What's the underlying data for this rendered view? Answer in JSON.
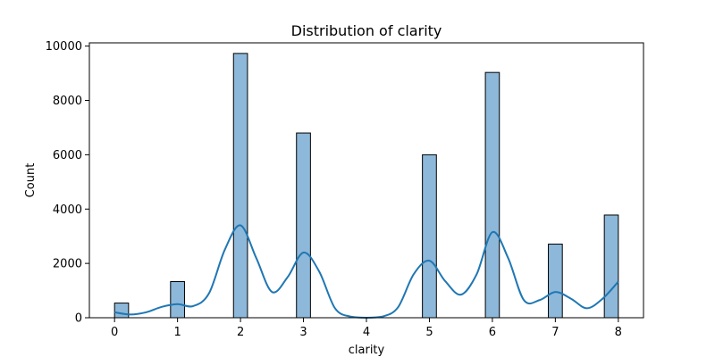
{
  "chart_data": {
    "type": "bar",
    "title": "Distribution of clarity",
    "xlabel": "clarity",
    "ylabel": "Count",
    "xlim": [
      -0.4,
      8.4
    ],
    "ylim": [
      0,
      10120
    ],
    "x_ticks": [
      0,
      1,
      2,
      3,
      4,
      5,
      6,
      7,
      8
    ],
    "y_ticks": [
      0,
      2000,
      4000,
      6000,
      8000,
      10000
    ],
    "grid": false,
    "bar_width": 0.2222,
    "bars": [
      {
        "x": 0.111,
        "value": 540
      },
      {
        "x": 1.0,
        "value": 1330
      },
      {
        "x": 2.0,
        "value": 9730
      },
      {
        "x": 3.0,
        "value": 6800
      },
      {
        "x": 5.0,
        "value": 6000
      },
      {
        "x": 6.0,
        "value": 9030
      },
      {
        "x": 7.0,
        "value": 2710
      },
      {
        "x": 7.889,
        "value": 3780
      }
    ],
    "kde": {
      "x": [
        0,
        0.25,
        0.5,
        0.75,
        1.0,
        1.25,
        1.5,
        1.75,
        2.0,
        2.25,
        2.5,
        2.75,
        3.0,
        3.25,
        3.5,
        3.75,
        4.0,
        4.25,
        4.5,
        4.75,
        5.0,
        5.25,
        5.5,
        5.75,
        6.0,
        6.25,
        6.5,
        6.75,
        7.0,
        7.25,
        7.5,
        7.75,
        8.0
      ],
      "y": [
        200,
        120,
        200,
        400,
        500,
        430,
        900,
        2500,
        3400,
        2200,
        950,
        1500,
        2400,
        1700,
        350,
        40,
        0,
        40,
        380,
        1600,
        2100,
        1350,
        850,
        1600,
        3150,
        2200,
        650,
        650,
        950,
        700,
        350,
        700,
        1330
      ]
    },
    "colors": {
      "bar_fill": "#8db8d9",
      "bar_edge": "#000000",
      "kde_line": "#1f77b4"
    }
  }
}
